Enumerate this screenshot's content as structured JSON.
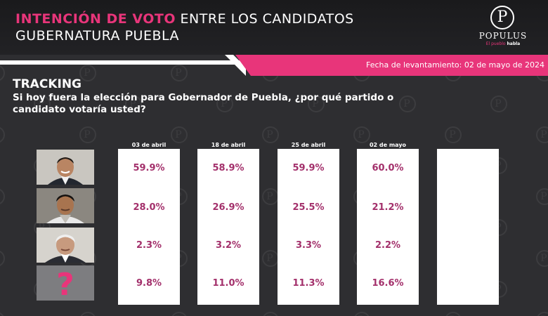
{
  "header": {
    "title_pink": "INTENCIÓN DE VOTO",
    "title_rest": "ENTRE LOS CANDIDATOS",
    "title_line2": "GUBERNATURA PUEBLA",
    "date_text": "Fecha de levantamiento: 02 de mayo de 2024"
  },
  "logo": {
    "letter": "P",
    "name": "POPULUS",
    "tagline_a": "El pueblo",
    "tagline_b": "habla"
  },
  "watermark": "POPULUS",
  "tracking_title": "TRACKING",
  "question": "Si hoy fuera la elección para Gobernador de Puebla, ¿por qué partido o candidato votaría usted?",
  "colors": {
    "pink": "#e8357a",
    "value_text": "#a3306b",
    "background": "#2e2e31"
  },
  "rows": [
    {
      "icon": "candidate-1-photo"
    },
    {
      "icon": "candidate-2-photo"
    },
    {
      "icon": "candidate-3-photo"
    },
    {
      "icon": "question-mark-icon"
    }
  ],
  "chart_data": {
    "type": "table",
    "title": "TRACKING",
    "categories": [
      "03 de abril",
      "18 de abril",
      "25 de abril",
      "02 de mayo"
    ],
    "series": [
      {
        "values": [
          59.9,
          58.9,
          59.9,
          60.0
        ]
      },
      {
        "values": [
          28.0,
          26.9,
          25.5,
          21.2
        ]
      },
      {
        "values": [
          2.3,
          3.2,
          3.3,
          2.2
        ]
      },
      {
        "values": [
          9.8,
          11.0,
          11.3,
          16.6
        ]
      }
    ],
    "display_values": [
      [
        "59.9%",
        "58.9%",
        "59.9%",
        "60.0%"
      ],
      [
        "28.0%",
        "26.9%",
        "25.5%",
        "21.2%"
      ],
      [
        "2.3%",
        "3.2%",
        "3.3%",
        "2.2%"
      ],
      [
        "9.8%",
        "11.0%",
        "11.3%",
        "16.6%"
      ]
    ]
  }
}
